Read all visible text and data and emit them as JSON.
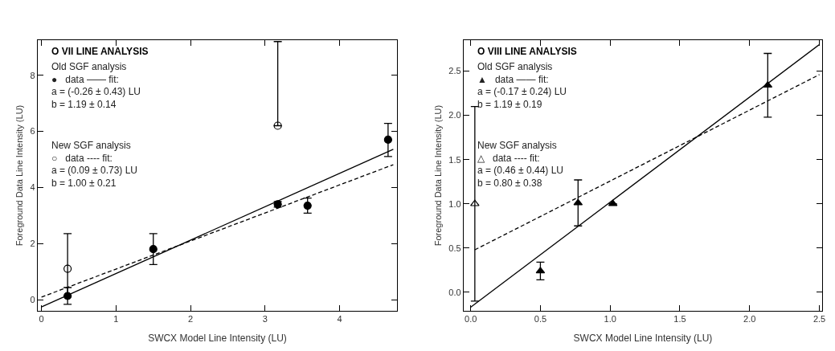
{
  "chart_data": [
    {
      "type": "scatter",
      "title": "O VII LINE ANALYSIS",
      "xlabel": "SWCX Model Line Intensity (LU)",
      "ylabel": "Foreground Data Line Intensity (LU)",
      "xlim": [
        -0.05,
        4.77
      ],
      "ylim": [
        -0.4,
        9.25
      ],
      "xticks": [
        0,
        1,
        2,
        3,
        4
      ],
      "yticks": [
        0,
        2,
        4,
        6,
        8
      ],
      "annotations": [
        "Old SGF analysis\n●   data —— fit:\na = (-0.26 ± 0.43) LU\nb = 1.19 ± 0.14",
        "New SGF analysis\n○   data ---- fit:\na = (0.09 ± 0.73) LU\nb = 1.00 ± 0.21"
      ],
      "series": [
        {
          "color": "#000000",
          "marker": "circle",
          "x": [
            0.35,
            1.5,
            3.17,
            3.57,
            4.65
          ],
          "values": [
            0.13,
            1.8,
            3.4,
            3.35,
            5.7
          ],
          "errors": [
            [
              -0.17,
              0.43
            ],
            [
              1.25,
              2.35
            ],
            [
              3.3,
              3.5
            ],
            [
              3.08,
              3.62
            ],
            [
              5.1,
              6.28
            ]
          ]
        },
        {
          "color": "#000000",
          "marker": "circle",
          "x": [
            0.35,
            3.17
          ],
          "values": [
            1.1,
            6.2
          ],
          "errors": [
            [
              0.13,
              2.35
            ],
            [
              6.2,
              9.2
            ]
          ]
        },
        {
          "type": "line",
          "color": "#000000",
          "line_style": "solid",
          "x": [
            0,
            4.72
          ],
          "values": [
            -0.26,
            5.36
          ]
        },
        {
          "type": "line",
          "color": "#000000",
          "line_style": "dashed",
          "x": [
            0,
            4.72
          ],
          "values": [
            0.09,
            4.81
          ]
        }
      ]
    },
    {
      "type": "scatter",
      "title": "O VIII LINE ANALYSIS",
      "xlabel": "SWCX Model Line Intensity (LU)",
      "ylabel": "Foreground Data Line Intensity (LU)",
      "xlim": [
        -0.05,
        2.52
      ],
      "ylim": [
        -0.21,
        2.85
      ],
      "xticks": [
        {
          "value": 0,
          "label": "0.0"
        },
        0.5,
        {
          "value": 1,
          "label": "1.0"
        },
        1.5,
        {
          "value": 2,
          "label": "2.0"
        },
        2.5
      ],
      "yticks": [
        {
          "value": 0,
          "label": "0.0"
        },
        0.5,
        {
          "value": 1,
          "label": "1.0"
        },
        1.5,
        {
          "value": 2,
          "label": "2.0"
        },
        2.5
      ],
      "annotations": [
        "Old SGF analysis\n▲   data —— fit:\na = (-0.17 ± 0.24) LU\nb = 1.19 ± 0.19",
        "New SGF analysis\n△   data ---- fit:\na = (0.46 ± 0.44) LU\nb = 0.80 ± 0.38"
      ],
      "series": [
        {
          "color": "#000000",
          "marker": "triangle",
          "x": [
            0.5,
            0.77,
            1.02,
            2.13
          ],
          "values": [
            0.24,
            1.01,
            1.0,
            2.34
          ],
          "errors": [
            [
              0.14,
              0.34
            ],
            [
              0.75,
              1.27
            ],
            null,
            [
              1.98,
              2.7
            ]
          ]
        },
        {
          "color": "#000000",
          "marker": "triangle",
          "x": [
            0.03
          ],
          "values": [
            1.0
          ],
          "errors": [
            [
              -0.1,
              2.1
            ]
          ]
        },
        {
          "type": "line",
          "color": "#000000",
          "line_style": "solid",
          "x": [
            0,
            2.5
          ],
          "values": [
            -0.17,
            2.8
          ]
        },
        {
          "type": "line",
          "color": "#000000",
          "line_style": "dashed",
          "x": [
            0.03,
            2.5
          ],
          "values": [
            0.48,
            2.46
          ]
        }
      ]
    }
  ]
}
